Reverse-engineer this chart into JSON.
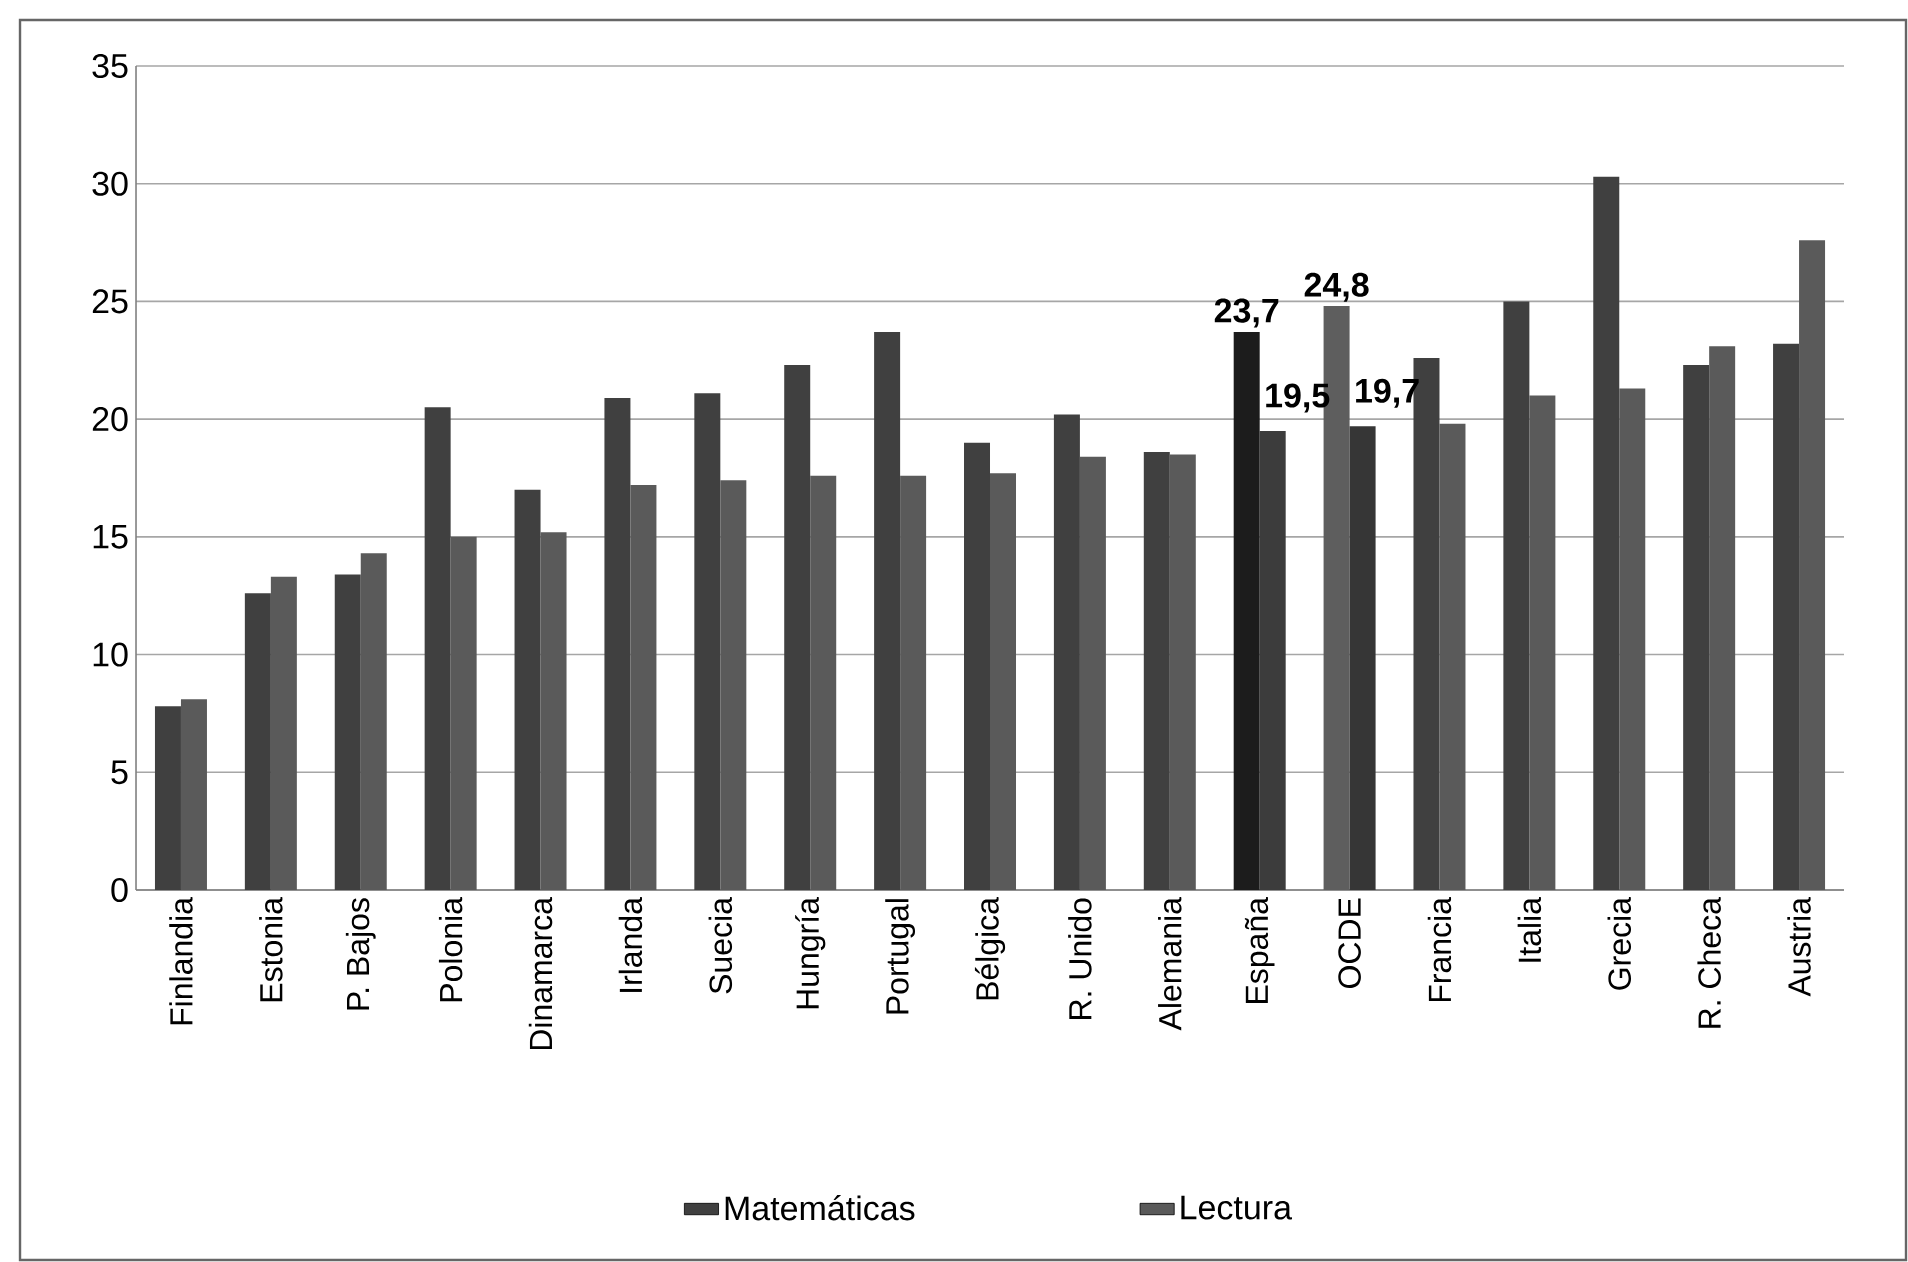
{
  "chart_data": {
    "type": "bar",
    "categories": [
      "Finlandia",
      "Estonia",
      "P. Bajos",
      "Polonia",
      "Dinamarca",
      "Irlanda",
      "Suecia",
      "Hungría",
      "Portugal",
      "Bélgica",
      "R. Unido",
      "Alemania",
      "España",
      "OCDE",
      "Francia",
      "Italia",
      "Grecia",
      "R. Checa",
      "Austria"
    ],
    "series": [
      {
        "name": "Matemáticas",
        "color": "#404040",
        "colors": [
          "#404040",
          "#404040",
          "#404040",
          "#404040",
          "#404040",
          "#404040",
          "#404040",
          "#404040",
          "#404040",
          "#404040",
          "#404040",
          "#404040",
          "#1c1c1c",
          "#5e5e5e",
          "#404040",
          "#404040",
          "#404040",
          "#404040",
          "#404040"
        ],
        "values": [
          7.8,
          12.6,
          13.4,
          20.5,
          17.0,
          20.9,
          21.1,
          22.3,
          23.7,
          19.0,
          20.2,
          18.6,
          23.7,
          24.8,
          22.6,
          25.0,
          30.3,
          22.3,
          23.2
        ],
        "value_labels": [
          null,
          null,
          null,
          null,
          null,
          null,
          null,
          null,
          null,
          null,
          null,
          null,
          "23,7",
          "24,8",
          null,
          null,
          null,
          null,
          null
        ]
      },
      {
        "name": "Lectura",
        "color": "#5a5a5a",
        "colors": [
          "#5a5a5a",
          "#5a5a5a",
          "#5a5a5a",
          "#5a5a5a",
          "#5a5a5a",
          "#5a5a5a",
          "#5a5a5a",
          "#5a5a5a",
          "#5a5a5a",
          "#5a5a5a",
          "#5a5a5a",
          "#5a5a5a",
          "#3c3c3c",
          "#363636",
          "#5a5a5a",
          "#5a5a5a",
          "#5a5a5a",
          "#5a5a5a",
          "#5a5a5a"
        ],
        "values": [
          8.1,
          13.3,
          14.3,
          15.0,
          15.2,
          17.2,
          17.4,
          17.6,
          17.6,
          17.7,
          18.4,
          18.5,
          19.5,
          19.7,
          19.8,
          21.0,
          21.3,
          23.1,
          27.6
        ],
        "value_labels": [
          null,
          null,
          null,
          null,
          null,
          null,
          null,
          null,
          null,
          null,
          null,
          null,
          "19,5",
          "19,7",
          null,
          null,
          null,
          null,
          null
        ]
      }
    ],
    "ylim": [
      0,
      35
    ],
    "yticks": [
      0,
      5,
      10,
      15,
      20,
      25,
      30,
      35
    ],
    "grid": "y",
    "legend": "bottom"
  }
}
